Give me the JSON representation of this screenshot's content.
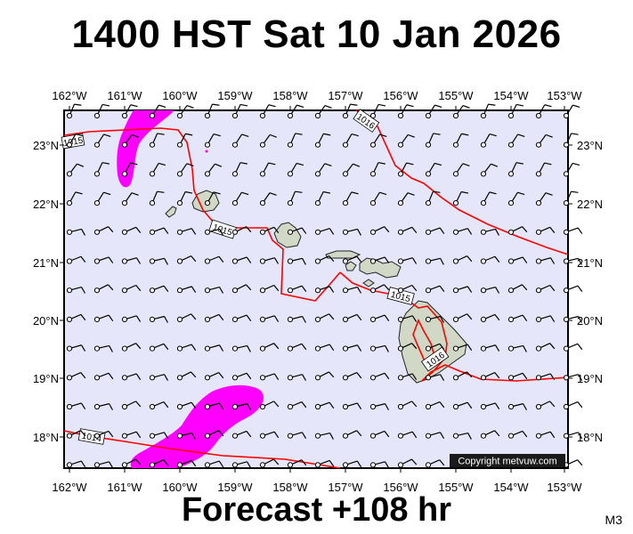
{
  "title": "1400 HST Sat 10 Jan 2026",
  "footer": "Forecast +108 hr",
  "model_label": "M3",
  "copyright": "Copyright metvuw.com",
  "longitude_labels": [
    "162°W",
    "161°W",
    "160°W",
    "159°W",
    "158°W",
    "157°W",
    "156°W",
    "155°W",
    "154°W",
    "153°W"
  ],
  "latitude_labels": [
    "23°N",
    "22°N",
    "21°N",
    "20°N",
    "19°N",
    "18°N"
  ],
  "isobar_labels": [
    "1015",
    "1016",
    "1015",
    "1015",
    "1016",
    "1014"
  ],
  "colors": {
    "ocean": "#e6e6fa",
    "isobar": "#ff0000",
    "precip": "#ff00ff",
    "land": "#d2d8c6",
    "land_outline": "#222222",
    "copyright_bg": "#1a1a1a"
  },
  "icons": [
    "wind-barb-icon"
  ]
}
